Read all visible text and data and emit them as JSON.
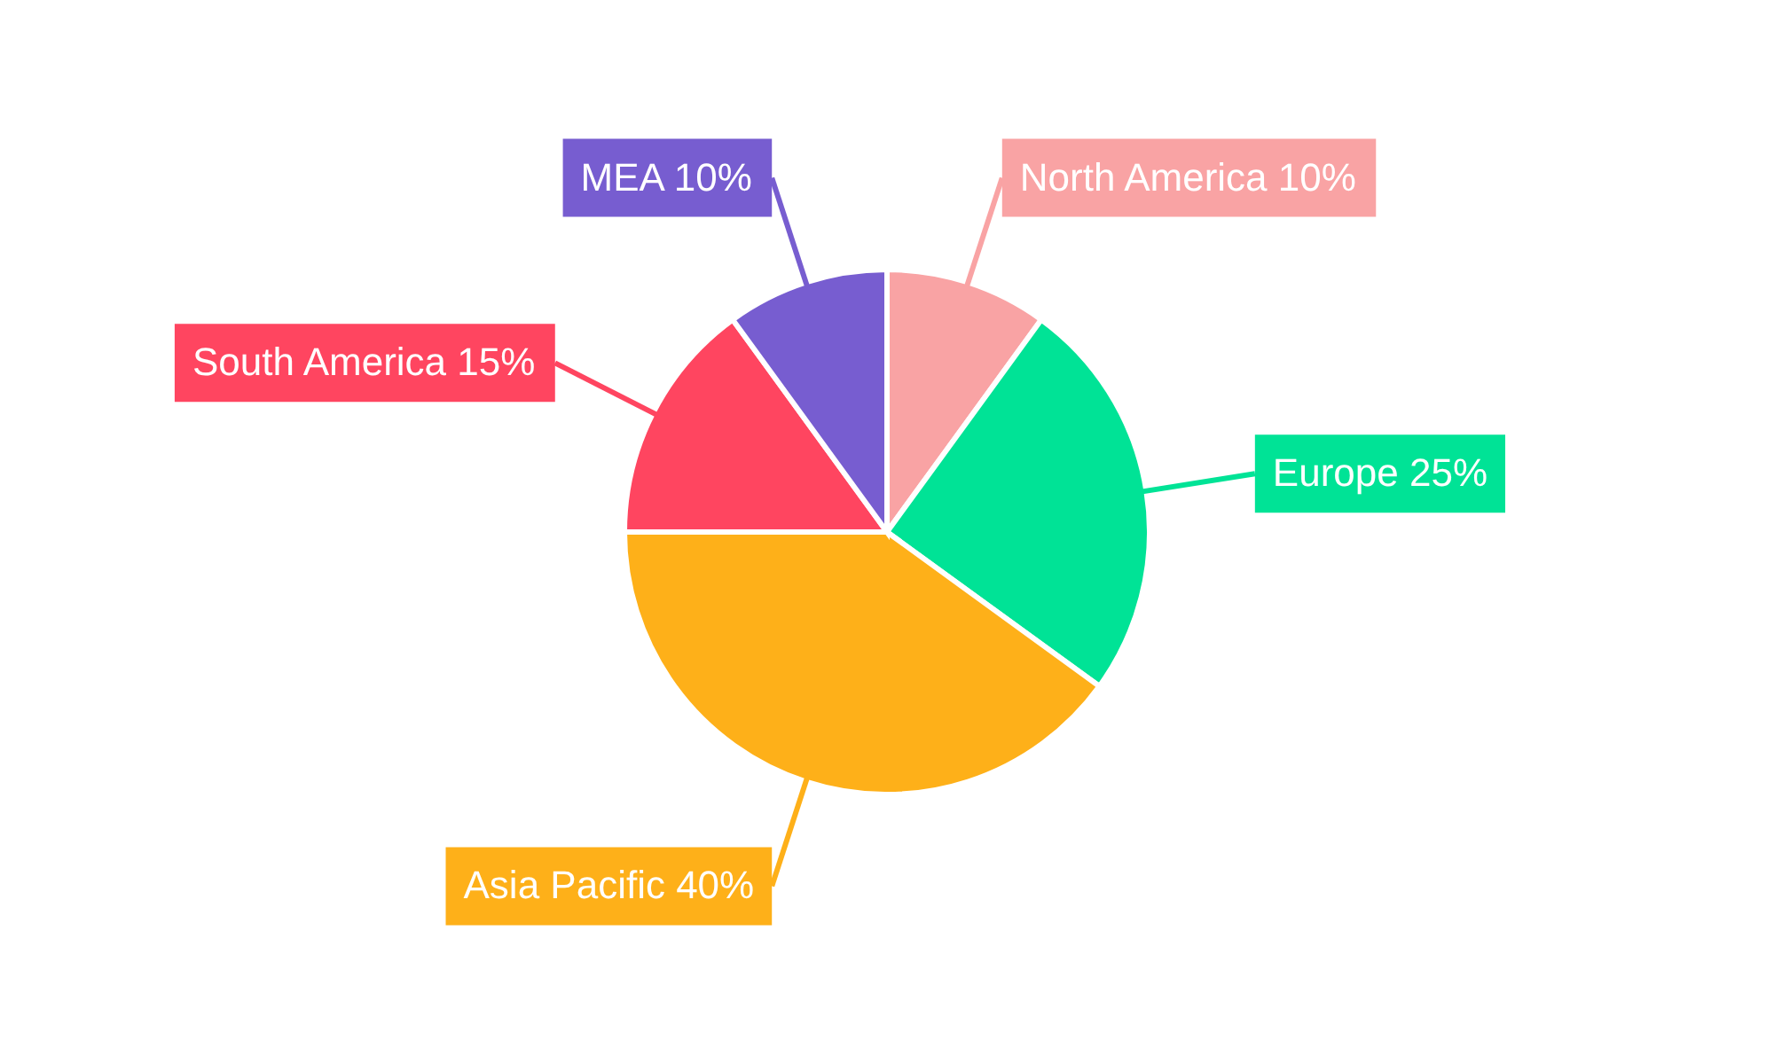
{
  "chart_data": {
    "type": "pie",
    "categories": [
      "North America",
      "Europe",
      "Asia Pacific",
      "South America",
      "MEA"
    ],
    "values": [
      10,
      25,
      40,
      15,
      10
    ],
    "colors": [
      "#f9a3a4",
      "#00e396",
      "#feb019",
      "#ff4560",
      "#775dd0"
    ],
    "value_labels": [
      "10%",
      "25%",
      "40%",
      "15%",
      "10%"
    ]
  }
}
